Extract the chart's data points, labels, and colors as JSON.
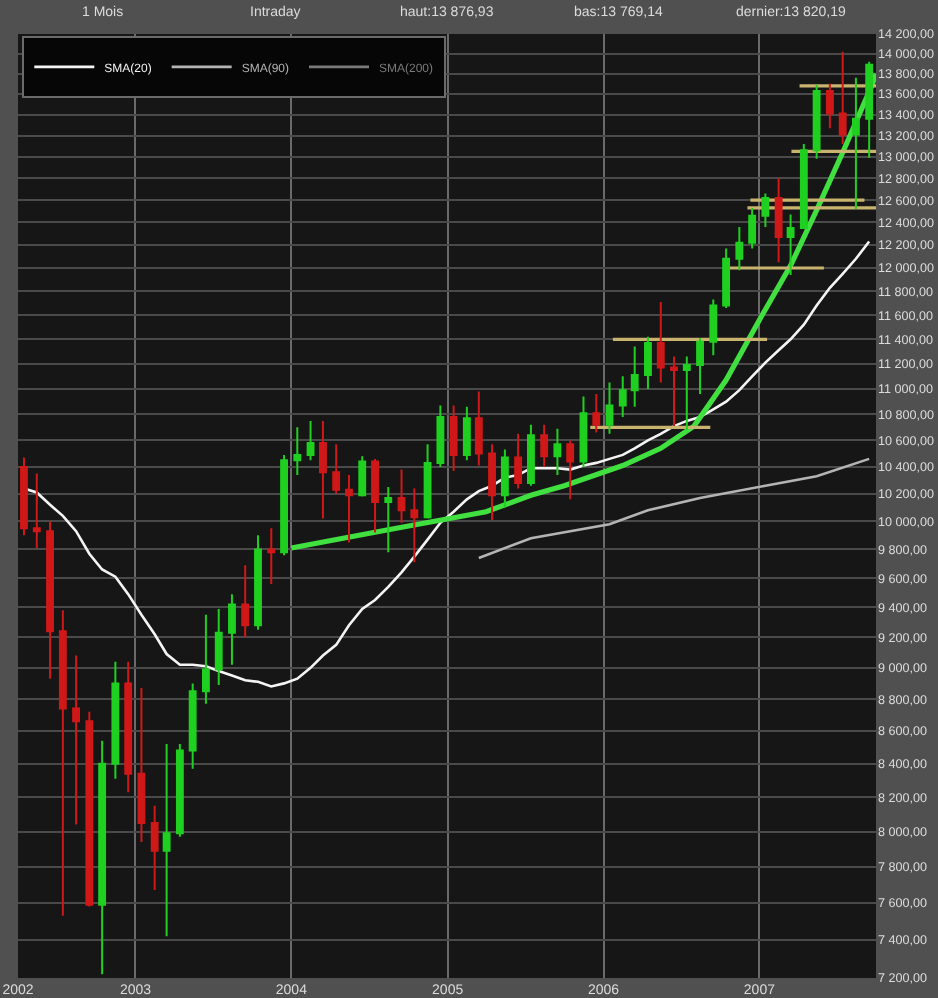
{
  "chart_data": {
    "type": "candlestick",
    "annotations": [
      "1 Mois",
      "Intraday",
      "haut:13 876,93",
      "bas:13 769,14",
      "dernier:13 820,19"
    ],
    "legend": "top left",
    "log": "y",
    "grid": true,
    "xlim": [
      "2002-04-01",
      "2007-10-01"
    ],
    "xticks": [
      {
        "value": "2002-04-01",
        "label": "2002"
      },
      {
        "value": "2003-01-01",
        "label": "2003"
      },
      {
        "value": "2004-01-01",
        "label": "2004"
      },
      {
        "value": "2005-01-01",
        "label": "2005"
      },
      {
        "value": "2006-01-01",
        "label": "2006"
      },
      {
        "value": "2007-01-01",
        "label": "2007"
      }
    ],
    "ylim": [
      7200,
      14200
    ],
    "yticks": [
      {
        "value": 7200,
        "label": "7 200,00"
      },
      {
        "value": 7400,
        "label": "7 400,00"
      },
      {
        "value": 7600,
        "label": "7 600,00"
      },
      {
        "value": 7800,
        "label": "7 800,00"
      },
      {
        "value": 8000,
        "label": "8 000,00"
      },
      {
        "value": 8200,
        "label": "8 200,00"
      },
      {
        "value": 8400,
        "label": "8 400,00"
      },
      {
        "value": 8600,
        "label": "8 600,00"
      },
      {
        "value": 8800,
        "label": "8 800,00"
      },
      {
        "value": 9000,
        "label": "9 000,00"
      },
      {
        "value": 9200,
        "label": "9 200,00"
      },
      {
        "value": 9400,
        "label": "9 400,00"
      },
      {
        "value": 9600,
        "label": "9 600,00"
      },
      {
        "value": 9800,
        "label": "9 800,00"
      },
      {
        "value": 10000,
        "label": "10 000,00"
      },
      {
        "value": 10200,
        "label": "10 200,00"
      },
      {
        "value": 10400,
        "label": "10 400,00"
      },
      {
        "value": 10600,
        "label": "10 600,00"
      },
      {
        "value": 10800,
        "label": "10 800,00"
      },
      {
        "value": 11000,
        "label": "11 000,00"
      },
      {
        "value": 11200,
        "label": "11 200,00"
      },
      {
        "value": 11400,
        "label": "11 400,00"
      },
      {
        "value": 11600,
        "label": "11 600,00"
      },
      {
        "value": 11800,
        "label": "11 800,00"
      },
      {
        "value": 12000,
        "label": "12 000,00"
      },
      {
        "value": 12200,
        "label": "12 200,00"
      },
      {
        "value": 12400,
        "label": "12 400,00"
      },
      {
        "value": 12600,
        "label": "12 600,00"
      },
      {
        "value": 12800,
        "label": "12 800,00"
      },
      {
        "value": 13000,
        "label": "13 000,00"
      },
      {
        "value": 13200,
        "label": "13 200,00"
      },
      {
        "value": 13400,
        "label": "13 400,00"
      },
      {
        "value": 13600,
        "label": "13 600,00"
      },
      {
        "value": 13800,
        "label": "13 800,00"
      },
      {
        "value": 14000,
        "label": "14 000,00"
      },
      {
        "value": 14200,
        "label": "14 200,00"
      }
    ],
    "x": [
      "2002-04-15",
      "2002-05-15",
      "2002-06-15",
      "2002-07-15",
      "2002-08-15",
      "2002-09-15",
      "2002-10-15",
      "2002-11-15",
      "2002-12-15",
      "2003-01-15",
      "2003-02-15",
      "2003-03-15",
      "2003-04-15",
      "2003-05-15",
      "2003-06-15",
      "2003-07-15",
      "2003-08-15",
      "2003-09-15",
      "2003-10-15",
      "2003-11-15",
      "2003-12-15",
      "2004-01-15",
      "2004-02-15",
      "2004-03-15",
      "2004-04-15",
      "2004-05-15",
      "2004-06-15",
      "2004-07-15",
      "2004-08-15",
      "2004-09-15",
      "2004-10-15",
      "2004-11-15",
      "2004-12-15",
      "2005-01-15",
      "2005-02-15",
      "2005-03-15",
      "2005-04-15",
      "2005-05-15",
      "2005-06-15",
      "2005-07-15",
      "2005-08-15",
      "2005-09-15",
      "2005-10-15",
      "2005-11-15",
      "2005-12-15",
      "2006-01-15",
      "2006-02-15",
      "2006-03-15",
      "2006-04-15",
      "2006-05-15",
      "2006-06-15",
      "2006-07-15",
      "2006-08-15",
      "2006-09-15",
      "2006-10-15",
      "2006-11-15",
      "2006-12-15",
      "2007-01-15",
      "2007-02-15",
      "2007-03-15",
      "2007-04-15",
      "2007-05-15",
      "2007-06-15",
      "2007-07-15",
      "2007-08-15",
      "2007-09-15"
    ],
    "series": [
      {
        "ohlc": [
          [
            10400,
            10470,
            9900,
            9950
          ],
          [
            9950,
            10350,
            9810,
            9930
          ],
          [
            9930,
            10000,
            8930,
            9240
          ],
          [
            9240,
            9380,
            7530,
            8740
          ],
          [
            8740,
            9080,
            8040,
            8660
          ],
          [
            8660,
            8720,
            7580,
            7590
          ],
          [
            7590,
            8540,
            7220,
            8400
          ],
          [
            8400,
            9040,
            8310,
            8900
          ],
          [
            8900,
            9040,
            8230,
            8340
          ],
          [
            8340,
            8870,
            7940,
            8050
          ],
          [
            8050,
            8150,
            7670,
            7890
          ],
          [
            7890,
            8520,
            7420,
            7990
          ],
          [
            7990,
            8520,
            7970,
            8480
          ],
          [
            8480,
            8900,
            8370,
            8850
          ],
          [
            8850,
            9350,
            8770,
            8990
          ],
          [
            8990,
            9390,
            8890,
            9230
          ],
          [
            9230,
            9490,
            9020,
            9420
          ],
          [
            9420,
            9690,
            9200,
            9280
          ],
          [
            9280,
            9900,
            9250,
            9800
          ],
          [
            9800,
            9950,
            9560,
            9780
          ],
          [
            9780,
            10490,
            9760,
            10450
          ],
          [
            10450,
            10700,
            10340,
            10490
          ],
          [
            10490,
            10750,
            10450,
            10580
          ],
          [
            10580,
            10750,
            10020,
            10360
          ],
          [
            10360,
            10570,
            10200,
            10230
          ],
          [
            10230,
            10340,
            9850,
            10190
          ],
          [
            10190,
            10480,
            10180,
            10440
          ],
          [
            10440,
            10460,
            9920,
            10140
          ],
          [
            10140,
            10250,
            9780,
            10170
          ],
          [
            10170,
            10380,
            9990,
            10080
          ],
          [
            10080,
            10240,
            9710,
            10030
          ],
          [
            10030,
            10570,
            10020,
            10430
          ],
          [
            10430,
            10870,
            10400,
            10780
          ],
          [
            10780,
            10870,
            10370,
            10490
          ],
          [
            10490,
            10860,
            10450,
            10770
          ],
          [
            10770,
            10980,
            10410,
            10500
          ],
          [
            10500,
            10570,
            10010,
            10190
          ],
          [
            10190,
            10530,
            10100,
            10470
          ],
          [
            10470,
            10650,
            10240,
            10280
          ],
          [
            10280,
            10720,
            10260,
            10640
          ],
          [
            10640,
            10720,
            10400,
            10480
          ],
          [
            10480,
            10690,
            10340,
            10570
          ],
          [
            10570,
            10600,
            10160,
            10440
          ],
          [
            10440,
            10940,
            10400,
            10810
          ],
          [
            10810,
            10960,
            10660,
            10720
          ],
          [
            10720,
            11050,
            10650,
            10870
          ],
          [
            10870,
            11100,
            10780,
            10990
          ],
          [
            10990,
            11340,
            10860,
            11110
          ],
          [
            11110,
            11420,
            11000,
            11370
          ],
          [
            11370,
            11710,
            11050,
            11170
          ],
          [
            11170,
            11260,
            10710,
            11150
          ],
          [
            11150,
            11260,
            10680,
            11190
          ],
          [
            11190,
            11410,
            10960,
            11380
          ],
          [
            11380,
            11730,
            11270,
            11680
          ],
          [
            11680,
            12170,
            11660,
            12080
          ],
          [
            12080,
            12360,
            11980,
            12220
          ],
          [
            12220,
            12530,
            12170,
            12460
          ],
          [
            12460,
            12660,
            12360,
            12620
          ],
          [
            12620,
            12800,
            12050,
            12270
          ],
          [
            12270,
            12470,
            11940,
            12350
          ],
          [
            12350,
            13120,
            12350,
            13060
          ],
          [
            13060,
            13690,
            12980,
            13630
          ],
          [
            13630,
            13700,
            13270,
            13410
          ],
          [
            13410,
            14020,
            13120,
            13210
          ],
          [
            13210,
            13760,
            12520,
            13360
          ],
          [
            13360,
            13920,
            12990,
            13890
          ]
        ],
        "colors": [
          "#d01818",
          "#d01818",
          "#d01818",
          "#d01818",
          "#d01818",
          "#d01818",
          "#20d020",
          "#20d020",
          "#d01818",
          "#d01818",
          "#d01818",
          "#20d020",
          "#20d020",
          "#20d020",
          "#20d020",
          "#20d020",
          "#20d020",
          "#d01818",
          "#20d020",
          "#d01818",
          "#20d020",
          "#20d020",
          "#20d020",
          "#d01818",
          "#d01818",
          "#d01818",
          "#20d020",
          "#d01818",
          "#20d020",
          "#d01818",
          "#d01818",
          "#20d020",
          "#20d020",
          "#d01818",
          "#20d020",
          "#d01818",
          "#d01818",
          "#20d020",
          "#d01818",
          "#20d020",
          "#d01818",
          "#20d020",
          "#d01818",
          "#20d020",
          "#d01818",
          "#20d020",
          "#20d020",
          "#20d020",
          "#20d020",
          "#d01818",
          "#d01818",
          "#20d020",
          "#20d020",
          "#20d020",
          "#20d020",
          "#20d020",
          "#20d020",
          "#20d020",
          "#d01818",
          "#20d020",
          "#20d020",
          "#20d020",
          "#d01818",
          "#d01818",
          "#20d020",
          "#20d020"
        ]
      },
      {
        "type": "line",
        "name": "SMA(20)",
        "color": "#f4f4f4",
        "values": [
          10240,
          10210,
          10120,
          10040,
          9930,
          9770,
          9660,
          9610,
          9490,
          9350,
          9220,
          9090,
          9020,
          9020,
          9010,
          8980,
          8950,
          8920,
          8910,
          8880,
          8900,
          8930,
          9000,
          9080,
          9150,
          9280,
          9390,
          9450,
          9540,
          9640,
          9750,
          9870,
          9990,
          10070,
          10160,
          10220,
          10260,
          10320,
          10340,
          10390,
          10390,
          10390,
          10380,
          10410,
          10430,
          10460,
          10490,
          10540,
          10600,
          10650,
          10710,
          10750,
          10780,
          10840,
          10900,
          10990,
          11100,
          11210,
          11310,
          11400,
          11520,
          11680,
          11830,
          11950,
          12080,
          12230
        ]
      },
      {
        "type": "line",
        "name": "SMA(90)",
        "color": "#b4b4b4",
        "x": [
          "2005-03-15",
          "2005-07-15",
          "2006-01-15",
          "2006-04-15",
          "2006-08-15",
          "2007-01-15",
          "2007-05-15",
          "2007-09-15"
        ],
        "values": [
          9740,
          9880,
          9980,
          10080,
          10170,
          10260,
          10330,
          10460
        ]
      },
      {
        "type": "line",
        "name": "SMA(200)",
        "color": "#7a7a7a",
        "values": [
          null,
          null,
          null,
          null,
          null,
          null,
          null,
          null,
          null,
          null,
          null,
          null,
          null,
          null,
          null,
          null,
          null,
          null,
          null,
          null,
          null,
          null,
          null,
          null,
          null,
          null,
          null,
          null,
          null,
          null,
          null,
          null,
          null,
          null,
          null,
          null,
          null,
          null,
          null,
          null,
          null,
          null,
          null,
          null,
          null,
          null,
          null,
          null,
          null,
          null,
          null,
          null,
          null,
          null,
          null,
          null,
          null,
          null,
          null,
          null,
          null,
          null,
          null,
          null,
          null,
          null
        ]
      },
      {
        "type": "line",
        "color": "#40e040",
        "x": [
          "2004-01-01",
          "2004-08-15",
          "2005-04-01",
          "2005-07-15",
          "2005-10-01",
          "2006-02-15",
          "2006-05-15",
          "2006-08-01",
          "2006-10-15",
          "2007-01-01",
          "2007-03-15",
          "2007-05-15",
          "2007-07-15",
          "2007-09-21",
          "2007-10-01"
        ],
        "values": [
          9810,
          9940,
          10070,
          10190,
          10260,
          10410,
          10540,
          10710,
          11070,
          11560,
          12020,
          12510,
          13040,
          13680,
          13800
        ]
      },
      {
        "type": "line",
        "color": "#c8b46e",
        "x": [
          "2005-12-01",
          "2006-09-08"
        ],
        "values": [
          10700,
          10700
        ]
      },
      {
        "type": "line",
        "color": "#c8b46e",
        "x": [
          "2006-01-23",
          "2007-01-19"
        ],
        "values": [
          11400,
          11400
        ]
      },
      {
        "type": "line",
        "color": "#c8b46e",
        "x": [
          "2006-10-19",
          "2007-06-01"
        ],
        "values": [
          12000,
          12000
        ]
      },
      {
        "type": "line",
        "color": "#c8b46e",
        "x": [
          "2006-12-11",
          "2007-09-04"
        ],
        "values": [
          12600,
          12600
        ]
      },
      {
        "type": "line",
        "color": "#c8b46e",
        "x": [
          "2006-12-04",
          "2007-10-01"
        ],
        "values": [
          12530,
          12530
        ]
      },
      {
        "type": "line",
        "color": "#c8b46e",
        "x": [
          "2007-03-17",
          "2007-10-01"
        ],
        "values": [
          13050,
          13050
        ]
      },
      {
        "type": "line",
        "color": "#c8b46e",
        "x": [
          "2007-04-05",
          "2007-10-01"
        ],
        "values": [
          13680,
          13680
        ]
      }
    ]
  }
}
